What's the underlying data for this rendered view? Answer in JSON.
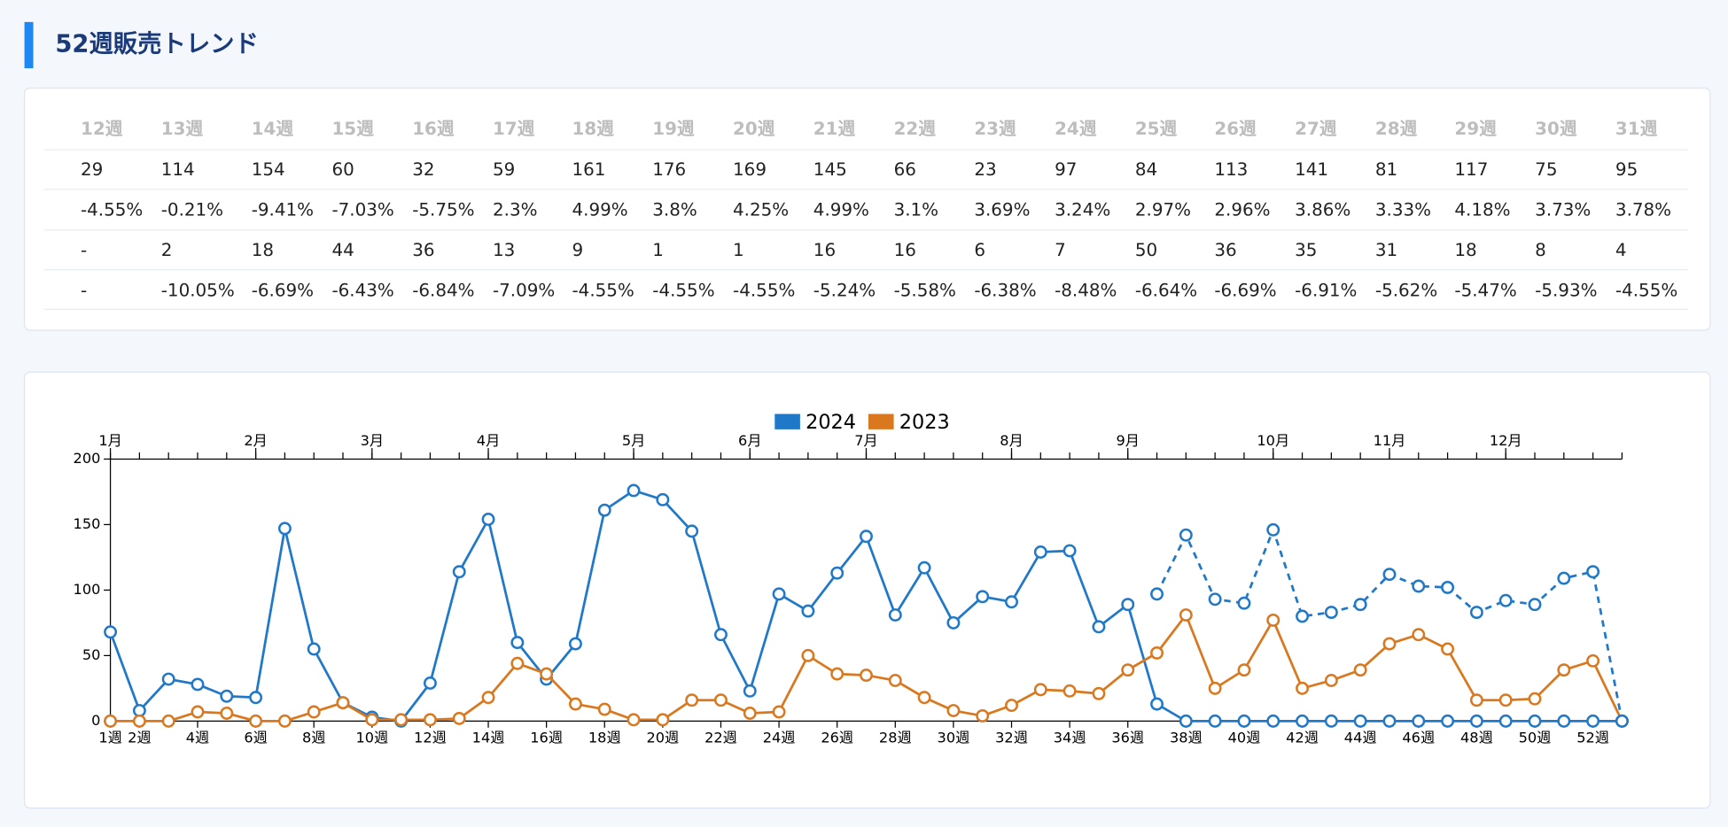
{
  "header": {
    "title": "52週販売トレンド"
  },
  "table": {
    "columns": [
      "12週",
      "13週",
      "14週",
      "15週",
      "16週",
      "17週",
      "18週",
      "19週",
      "20週",
      "21週",
      "22週",
      "23週",
      "24週",
      "25週",
      "26週",
      "27週",
      "28週",
      "29週",
      "30週",
      "31週"
    ],
    "rows": [
      [
        "29",
        "114",
        "154",
        "60",
        "32",
        "59",
        "161",
        "176",
        "169",
        "145",
        "66",
        "23",
        "97",
        "84",
        "113",
        "141",
        "81",
        "117",
        "75",
        "95"
      ],
      [
        "-4.55%",
        "-0.21%",
        "-9.41%",
        "-7.03%",
        "-5.75%",
        "2.3%",
        "4.99%",
        "3.8%",
        "4.25%",
        "4.99%",
        "3.1%",
        "3.69%",
        "3.24%",
        "2.97%",
        "2.96%",
        "3.86%",
        "3.33%",
        "4.18%",
        "3.73%",
        "3.78%"
      ],
      [
        "-",
        "2",
        "18",
        "44",
        "36",
        "13",
        "9",
        "1",
        "1",
        "16",
        "16",
        "6",
        "7",
        "50",
        "36",
        "35",
        "31",
        "18",
        "8",
        "4"
      ],
      [
        "-",
        "-10.05%",
        "-6.69%",
        "-6.43%",
        "-6.84%",
        "-7.09%",
        "-4.55%",
        "-4.55%",
        "-4.55%",
        "-5.24%",
        "-5.58%",
        "-6.38%",
        "-8.48%",
        "-6.64%",
        "-6.69%",
        "-6.91%",
        "-5.62%",
        "-5.47%",
        "-5.93%",
        "-4.55%"
      ]
    ]
  },
  "chart_data": {
    "type": "line",
    "categories": [
      "1週",
      "2週",
      null,
      "4週",
      null,
      "6週",
      null,
      "8週",
      null,
      "10週",
      null,
      "12週",
      null,
      "14週",
      null,
      "16週",
      null,
      "18週",
      null,
      "20週",
      null,
      "22週",
      null,
      "24週",
      null,
      "26週",
      null,
      "28週",
      null,
      "30週",
      null,
      "32週",
      null,
      "34週",
      null,
      "36週",
      null,
      "38週",
      null,
      "40週",
      null,
      "42週",
      null,
      "44週",
      null,
      "46週",
      null,
      "48週",
      null,
      "50週",
      null,
      "52週",
      null
    ],
    "x2_labels": [
      "1月",
      "2月",
      "3月",
      "4月",
      "5月",
      "6月",
      "7月",
      "8月",
      "9月",
      "10月",
      "11月",
      "12月"
    ],
    "x2_positions": [
      1,
      6,
      10,
      14,
      19,
      23,
      27,
      32,
      36,
      41,
      45,
      49
    ],
    "ylim": [
      0,
      200
    ],
    "yticks": [
      0,
      50,
      100,
      150,
      200
    ],
    "series": [
      {
        "name": "2024",
        "color": "#1f78c8",
        "line_style": "solid",
        "values": [
          68,
          8,
          32,
          28,
          19,
          18,
          147,
          55,
          14,
          3,
          0,
          29,
          114,
          154,
          60,
          32,
          59,
          161,
          176,
          169,
          145,
          66,
          23,
          97,
          84,
          113,
          141,
          81,
          117,
          75,
          95,
          91,
          129,
          130,
          72,
          89,
          13,
          0,
          0,
          0,
          0,
          0,
          0,
          0,
          0,
          0,
          0,
          0,
          0,
          0,
          0,
          0,
          0
        ]
      },
      {
        "name": "2023",
        "color": "#d9781e",
        "line_style": "solid",
        "values": [
          0,
          0,
          0,
          7,
          6,
          0,
          0,
          7,
          14,
          1,
          1,
          1,
          2,
          18,
          44,
          36,
          13,
          9,
          1,
          1,
          16,
          16,
          6,
          7,
          50,
          36,
          35,
          31,
          18,
          8,
          4,
          12,
          24,
          23,
          21,
          39,
          52,
          81,
          25,
          39,
          77,
          25,
          31,
          39,
          59,
          66,
          55,
          16,
          16,
          17,
          39,
          46,
          0
        ]
      },
      {
        "color": "#1f78c8",
        "line_style": "dashed",
        "values": [
          null,
          null,
          null,
          null,
          null,
          null,
          null,
          null,
          null,
          null,
          null,
          null,
          null,
          null,
          null,
          null,
          null,
          null,
          null,
          null,
          null,
          null,
          null,
          null,
          null,
          null,
          null,
          null,
          null,
          null,
          null,
          null,
          null,
          null,
          null,
          null,
          97,
          142,
          93,
          90,
          146,
          80,
          83,
          89,
          112,
          103,
          102,
          83,
          92,
          89,
          109,
          114,
          0
        ]
      }
    ]
  }
}
